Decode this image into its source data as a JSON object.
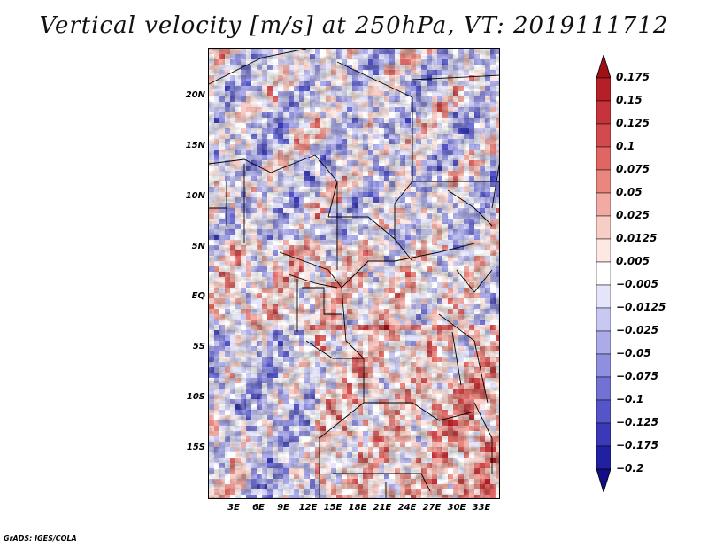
{
  "title": "Vertical velocity [m/s] at 250hPa, VT: 2019111712",
  "credit": "GrADS: IGES/COLA",
  "map": {
    "lat_ticks": [
      "20N",
      "15N",
      "10N",
      "5N",
      "EQ",
      "5S",
      "10S",
      "15S"
    ],
    "lon_ticks": [
      "3E",
      "6E",
      "9E",
      "12E",
      "15E",
      "18E",
      "21E",
      "24E",
      "27E",
      "30E",
      "33E"
    ]
  },
  "colorbar": {
    "labels": [
      "0.175",
      "0.15",
      "0.125",
      "0.1",
      "0.075",
      "0.05",
      "0.025",
      "0.0125",
      "0.005",
      "−0.005",
      "−0.0125",
      "−0.025",
      "−0.05",
      "−0.075",
      "−0.1",
      "−0.125",
      "−0.175",
      "−0.2"
    ],
    "colors": [
      "#a01015",
      "#b52028",
      "#c4343a",
      "#d24a4c",
      "#df6663",
      "#e9877f",
      "#f2aaa2",
      "#f8cdc6",
      "#fde8e4",
      "#ffffff",
      "#e4e4fa",
      "#c8c8f2",
      "#ababea",
      "#8f8fe0",
      "#7272d4",
      "#5555c8",
      "#3a3ab8",
      "#2020a0",
      "#120d86"
    ]
  },
  "colors": {
    "positive": "#d24a4c",
    "negative": "#7272d4",
    "neutral": "#ffffff",
    "border": "#000000"
  }
}
